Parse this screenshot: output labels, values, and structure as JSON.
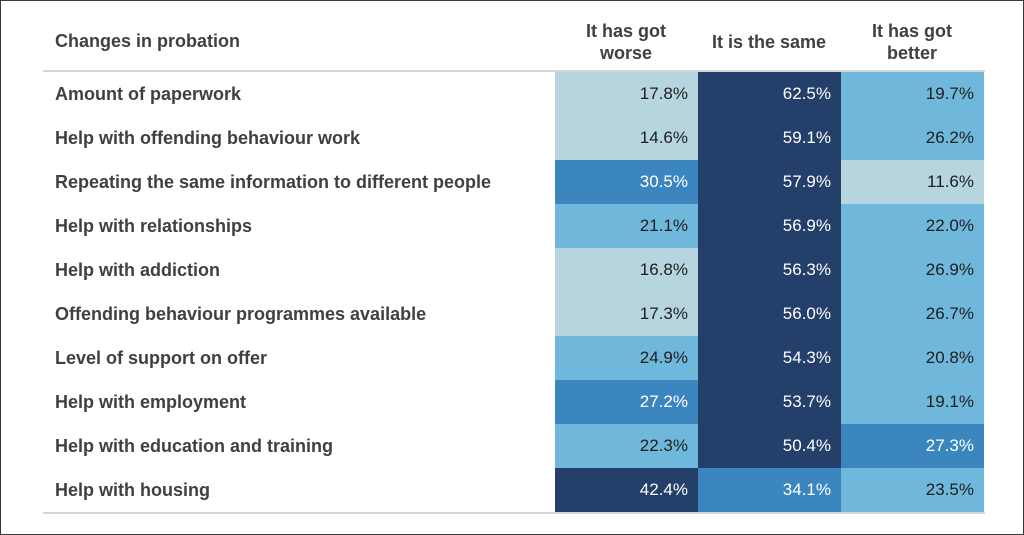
{
  "chart_data": {
    "type": "table",
    "header_label": "Changes in probation",
    "columns": [
      "It has got\nworse",
      "It is the same",
      "It has got\nbetter"
    ],
    "rows": [
      {
        "label": "Amount of paperwork",
        "values": [
          17.8,
          62.5,
          19.7
        ],
        "text": [
          "17.8%",
          "62.5%",
          "19.7%"
        ]
      },
      {
        "label": "Help with offending behaviour work",
        "values": [
          14.6,
          59.1,
          26.2
        ],
        "text": [
          "14.6%",
          "59.1%",
          "26.2%"
        ]
      },
      {
        "label": "Repeating the same information to different people",
        "values": [
          30.5,
          57.9,
          11.6
        ],
        "text": [
          "30.5%",
          "57.9%",
          "11.6%"
        ]
      },
      {
        "label": "Help with relationships",
        "values": [
          21.1,
          56.9,
          22.0
        ],
        "text": [
          "21.1%",
          "56.9%",
          "22.0%"
        ]
      },
      {
        "label": "Help with addiction",
        "values": [
          16.8,
          56.3,
          26.9
        ],
        "text": [
          "16.8%",
          "56.3%",
          "26.9%"
        ]
      },
      {
        "label": "Offending behaviour programmes available",
        "values": [
          17.3,
          56.0,
          26.7
        ],
        "text": [
          "17.3%",
          "56.0%",
          "26.7%"
        ]
      },
      {
        "label": "Level of support on offer",
        "values": [
          24.9,
          54.3,
          20.8
        ],
        "text": [
          "24.9%",
          "54.3%",
          "20.8%"
        ]
      },
      {
        "label": "Help with employment",
        "values": [
          27.2,
          53.7,
          19.1
        ],
        "text": [
          "27.2%",
          "53.7%",
          "19.1%"
        ]
      },
      {
        "label": "Help with education and training",
        "values": [
          22.3,
          50.4,
          27.3
        ],
        "text": [
          "22.3%",
          "50.4%",
          "27.3%"
        ]
      },
      {
        "label": "Help with housing",
        "values": [
          42.4,
          34.1,
          23.5
        ],
        "text": [
          "42.4%",
          "34.1%",
          "23.5%"
        ]
      }
    ],
    "colors": {
      "very_light": "#b6d5de",
      "light": "#6fb8db",
      "medium": "#3c86bf",
      "dark": "#233f6a"
    },
    "scale": "heatmap by value (light = low, dark = high)"
  }
}
